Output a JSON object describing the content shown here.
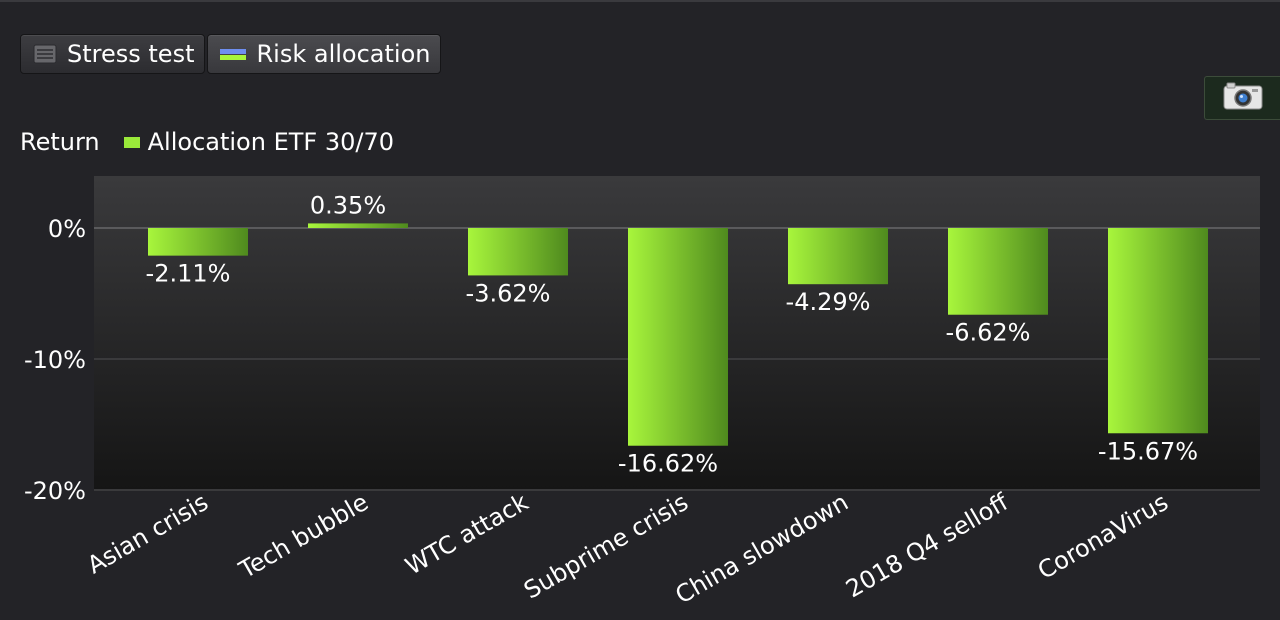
{
  "tabs": [
    {
      "label": "Stress test",
      "icon": "table-icon"
    },
    {
      "label": "Risk allocation",
      "icon": "bar-legend-icon"
    }
  ],
  "camera": {
    "icon": "camera-icon"
  },
  "colors": {
    "bar_start": "#a8f63c",
    "bar_end": "#4f8a1e",
    "legend": "#9ae93a",
    "plot_top": "#3a3a3c",
    "plot_bottom": "#151515"
  },
  "chart_data": {
    "type": "bar",
    "ylabel": "Return",
    "categories": [
      "Asian crisis",
      "Tech bubble",
      "WTC attack",
      "Subprime crisis",
      "China slowdown",
      "2018 Q4 selloff",
      "CoronaVirus"
    ],
    "series": [
      {
        "name": "Allocation ETF 30/70",
        "values": [
          -2.11,
          0.35,
          -3.62,
          -16.62,
          -4.29,
          -6.62,
          -15.67
        ],
        "labels": [
          "-2.11%",
          "0.35%",
          "-3.62%",
          "-16.62%",
          "-4.29%",
          "-6.62%",
          "-15.67%"
        ]
      }
    ],
    "ylim": [
      -20,
      4
    ],
    "yticks": [
      0,
      -10,
      -20
    ],
    "ytick_labels": [
      "0%",
      "-10%",
      "-20%"
    ],
    "grid": true,
    "legend": "top-left"
  }
}
